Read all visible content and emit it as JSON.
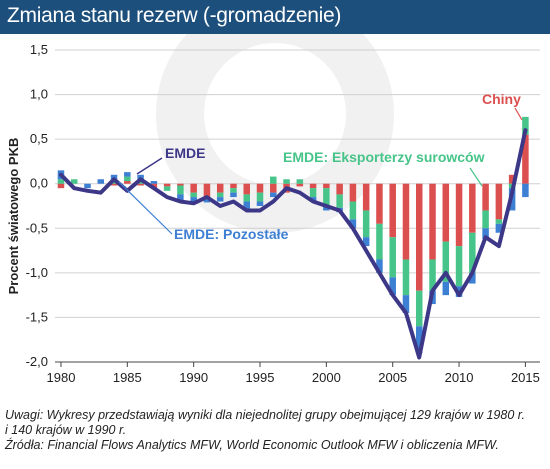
{
  "header": {
    "title": "Zmiana stanu rezerw (-gromadzenie)"
  },
  "colors": {
    "header_bg": "#1d4f7c",
    "emde": "#3d3788",
    "chiny": "#dc4f4f",
    "pozostale": "#3d7fd3",
    "eksporterzy": "#47c489",
    "grid": "#d0d0d0"
  },
  "notes": {
    "line1": "Uwagi: Wykresy przedstawiają wyniki dla niejednolitej grupy obejmującej 129 krajów w 1980 r.",
    "line2": "i 140 krajów w 1990 r.",
    "line3": "Źródła: Financial Flows Analytics MFW,  World Economic Outlook MFW i obliczenia MFW."
  },
  "chart_data": {
    "type": "bar",
    "stacked": true,
    "ylabel": "Procent światowego PKB",
    "ylim": [
      -2.0,
      1.5
    ],
    "yticks": [
      1.5,
      1.0,
      0.5,
      0.0,
      -0.5,
      -1.0,
      -1.5,
      -2.0
    ],
    "ytick_labels": [
      "1,5",
      "1,0",
      "0,5",
      "0,0",
      "-0,5",
      "-1,0",
      "-1,5",
      "-2,0"
    ],
    "xticks": [
      1980,
      1985,
      1990,
      1995,
      2000,
      2005,
      2010,
      2015
    ],
    "xtick_labels": [
      "1980",
      "1985",
      "1990",
      "1995",
      "2000",
      "2005",
      "2010",
      "2015"
    ],
    "grid": true,
    "years": [
      1980,
      1981,
      1982,
      1983,
      1984,
      1985,
      1986,
      1987,
      1988,
      1989,
      1990,
      1991,
      1992,
      1993,
      1994,
      1995,
      1996,
      1997,
      1998,
      1999,
      2000,
      2001,
      2002,
      2003,
      2004,
      2005,
      2006,
      2007,
      2008,
      2009,
      2010,
      2011,
      2012,
      2013,
      2014,
      2015
    ],
    "series": [
      {
        "name": "Chiny",
        "color_key": "chiny",
        "values": [
          -0.05,
          0,
          0,
          0,
          -0.02,
          0.03,
          -0.02,
          -0.05,
          -0.03,
          -0.02,
          -0.1,
          -0.15,
          -0.1,
          -0.05,
          -0.12,
          -0.1,
          -0.1,
          -0.1,
          -0.03,
          -0.05,
          -0.05,
          -0.12,
          -0.2,
          -0.3,
          -0.45,
          -0.6,
          -0.85,
          -1.2,
          -0.85,
          -0.65,
          -0.7,
          -0.55,
          -0.3,
          -0.4,
          0.1,
          0.55
        ]
      },
      {
        "name": "EMDE: Eksporterzy surowców",
        "color_key": "eksporterzy",
        "values": [
          0.05,
          0.05,
          0,
          0,
          0.05,
          0.05,
          0.05,
          0,
          -0.05,
          -0.1,
          -0.05,
          -0.03,
          -0.05,
          -0.05,
          -0.08,
          -0.1,
          0.08,
          0.05,
          0.05,
          -0.1,
          -0.2,
          -0.15,
          -0.2,
          -0.3,
          -0.4,
          -0.45,
          -0.4,
          -0.4,
          -0.35,
          -0.45,
          -0.45,
          -0.45,
          -0.2,
          -0.05,
          -0.05,
          0.2
        ]
      },
      {
        "name": "EMDE: Pozostałe",
        "color_key": "pozostale",
        "values": [
          0.1,
          0,
          -0.05,
          0.05,
          0.05,
          0.05,
          0.05,
          0.03,
          0,
          -0.08,
          -0.05,
          -0.03,
          -0.05,
          -0.05,
          -0.08,
          -0.05,
          -0.05,
          0,
          0,
          -0.05,
          -0.05,
          -0.05,
          -0.1,
          -0.1,
          -0.15,
          -0.2,
          -0.2,
          -0.3,
          -0.15,
          -0.15,
          -0.12,
          -0.12,
          -0.12,
          -0.1,
          -0.25,
          -0.15
        ]
      },
      {
        "name": "EMDE",
        "type": "line",
        "color_key": "emde",
        "values": [
          0.1,
          -0.05,
          -0.08,
          -0.1,
          0.05,
          -0.08,
          0.05,
          -0.05,
          -0.15,
          -0.2,
          -0.22,
          -0.15,
          -0.25,
          -0.2,
          -0.3,
          -0.3,
          -0.2,
          -0.05,
          -0.1,
          -0.2,
          -0.25,
          -0.3,
          -0.5,
          -0.75,
          -1.0,
          -1.25,
          -1.45,
          -1.95,
          -1.2,
          -1.0,
          -1.25,
          -1.0,
          -0.6,
          -0.7,
          -0.1,
          0.6
        ]
      }
    ],
    "annotations": [
      {
        "text": "EMDE",
        "series": "EMDE"
      },
      {
        "text": "EMDE: Eksporterzy surowców",
        "series": "EMDE: Eksporterzy surowców"
      },
      {
        "text": "EMDE: Pozostałe",
        "series": "EMDE: Pozostałe"
      },
      {
        "text": "Chiny",
        "series": "Chiny"
      }
    ]
  }
}
